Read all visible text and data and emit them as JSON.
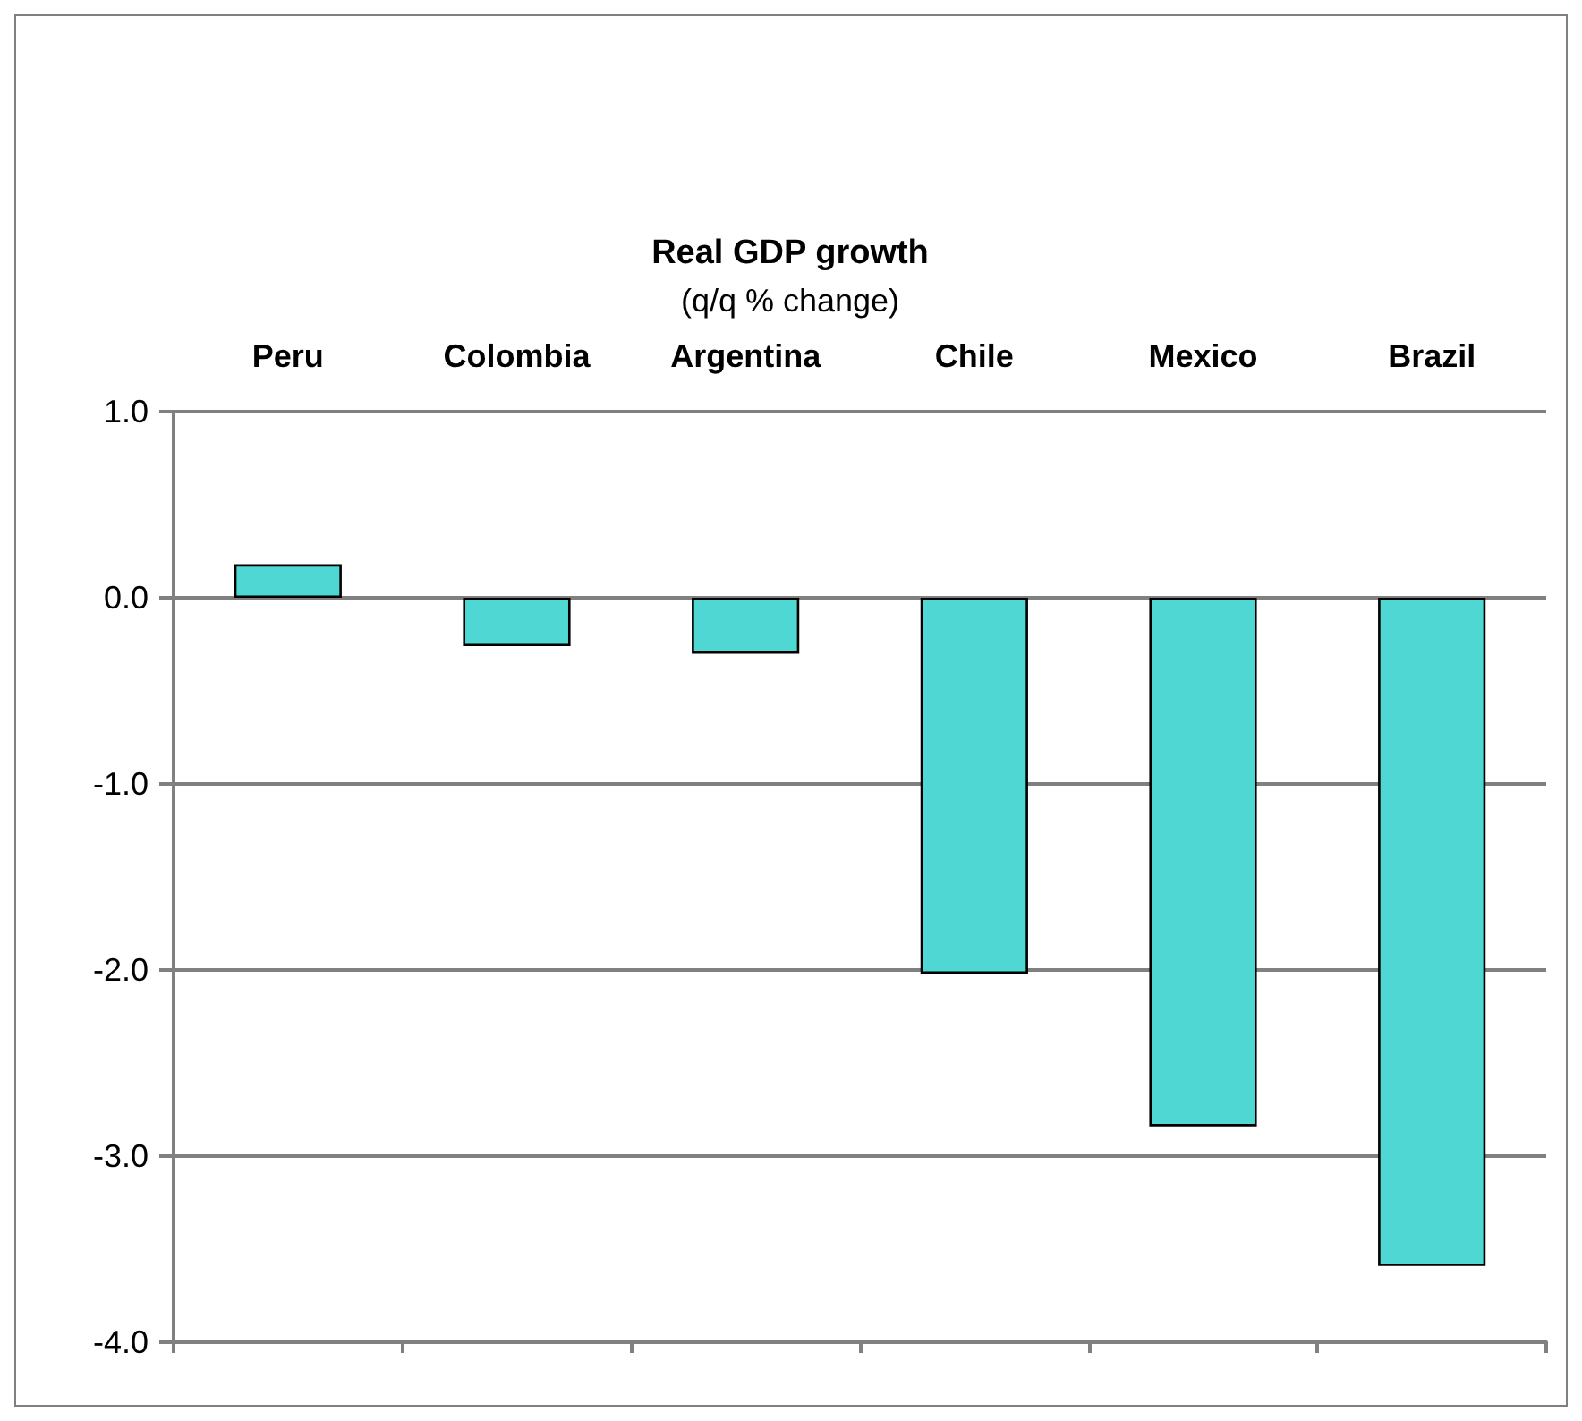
{
  "chart_data": {
    "type": "bar",
    "title": "Real GDP growth",
    "subtitle": "(q/q % change)",
    "categories": [
      "Peru",
      "Colombia",
      "Argentina",
      "Chile",
      "Mexico",
      "Brazil"
    ],
    "values": [
      0.18,
      -0.26,
      -0.3,
      -2.02,
      -2.84,
      -3.59
    ],
    "color": "#4fd7d3",
    "ylim": [
      -4,
      1
    ],
    "yticks": [
      {
        "value": -4,
        "label": "-4.0"
      },
      {
        "value": -3,
        "label": "-3.0"
      },
      {
        "value": -2,
        "label": "-2.0"
      },
      {
        "value": -1,
        "label": "-1.0"
      },
      {
        "value": 0,
        "label": "0.0"
      },
      {
        "value": 1,
        "label": "1.0"
      }
    ],
    "grid": "y"
  }
}
